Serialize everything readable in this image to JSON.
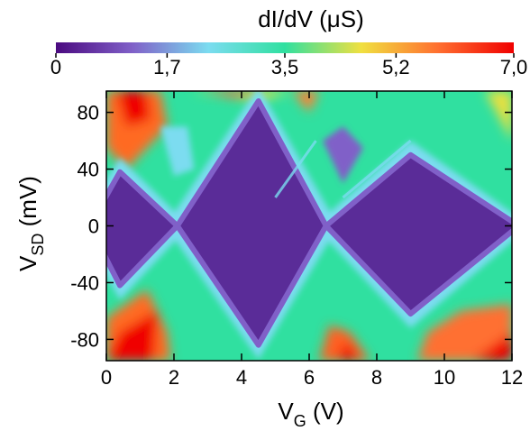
{
  "chart_data": {
    "type": "heatmap",
    "colorbar": {
      "label": "dI/dV (μS)",
      "range": [
        0,
        7.0
      ],
      "ticks": [
        0,
        1.7,
        3.5,
        5.2,
        7.0
      ],
      "tick_labels": [
        "0",
        "1,7",
        "3,5",
        "5,2",
        "7,0"
      ],
      "colormap": [
        "#4b0a80",
        "#8060c8",
        "#7bdcf0",
        "#30e0a0",
        "#f0e040",
        "#ff7030",
        "#f00000"
      ]
    },
    "x_axis": {
      "label": "V",
      "label_subscript": "G",
      "label_unit": "(V)",
      "range": [
        0,
        12
      ],
      "ticks": [
        0,
        2,
        4,
        6,
        8,
        10,
        12
      ],
      "tick_labels": [
        "0",
        "2",
        "4",
        "6",
        "8",
        "10",
        "12"
      ]
    },
    "y_axis": {
      "label": "V",
      "label_subscript": "SD",
      "label_unit": "(mV)",
      "range": [
        -95,
        95
      ],
      "ticks": [
        80,
        40,
        0,
        -40,
        -80
      ],
      "tick_labels": [
        "80",
        "40",
        "0",
        "-40",
        "-80"
      ]
    },
    "coulomb_diamonds": [
      {
        "left_vg": -0.5,
        "right_vg": 2.1,
        "center_vg": 0.4,
        "top_vsd": 38,
        "bottom_vsd": -42
      },
      {
        "left_vg": 2.1,
        "right_vg": 6.5,
        "center_vg": 4.5,
        "top_vsd": 88,
        "bottom_vsd": -84
      },
      {
        "left_vg": 6.5,
        "right_vg": 12.2,
        "center_vg": 9.0,
        "top_vsd": 50,
        "bottom_vsd": -62
      }
    ],
    "degeneracy_points_vg": [
      2.1,
      6.5
    ],
    "secondary_lines": [
      {
        "from": [
          7.0,
          20
        ],
        "to": [
          9.0,
          60
        ]
      },
      {
        "from": [
          5.0,
          20
        ],
        "to": [
          6.2,
          60
        ]
      }
    ],
    "grid": false
  }
}
